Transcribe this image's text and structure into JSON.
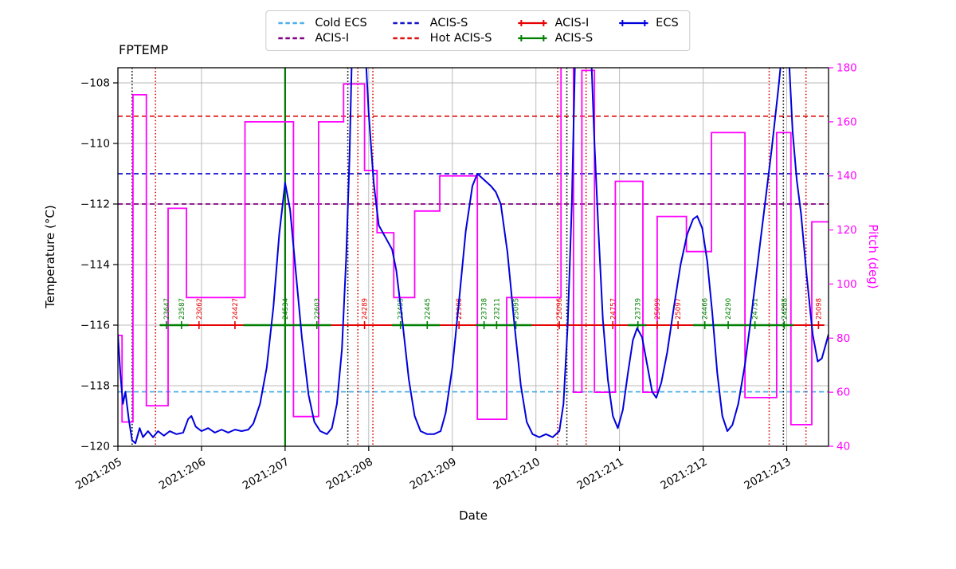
{
  "chart_data": {
    "type": "line",
    "title": "FPTEMP",
    "xlabel": "Date",
    "ylabel_left": "Temperature (°C)",
    "ylabel_right": "Pitch (deg)",
    "x_domain": [
      205.0,
      213.5
    ],
    "y_left_domain": [
      -120,
      -107.5
    ],
    "y_right_domain": [
      40,
      180
    ],
    "grid": true,
    "x_ticks": [
      {
        "v": 205,
        "label": "2021:205"
      },
      {
        "v": 206,
        "label": "2021:206"
      },
      {
        "v": 207,
        "label": "2021:207"
      },
      {
        "v": 208,
        "label": "2021:208"
      },
      {
        "v": 209,
        "label": "2021:209"
      },
      {
        "v": 210,
        "label": "2021:210"
      },
      {
        "v": 211,
        "label": "2021:211"
      },
      {
        "v": 212,
        "label": "2021:212"
      },
      {
        "v": 213,
        "label": "2021:213"
      }
    ],
    "y_left_ticks": [
      {
        "v": -108,
        "label": "−108"
      },
      {
        "v": -110,
        "label": "−110"
      },
      {
        "v": -112,
        "label": "−112"
      },
      {
        "v": -114,
        "label": "−114"
      },
      {
        "v": -116,
        "label": "−116"
      },
      {
        "v": -118,
        "label": "−118"
      },
      {
        "v": -120,
        "label": "−120"
      }
    ],
    "y_right_ticks": [
      {
        "v": 40,
        "label": "40"
      },
      {
        "v": 60,
        "label": "60"
      },
      {
        "v": 80,
        "label": "80"
      },
      {
        "v": 100,
        "label": "100"
      },
      {
        "v": 120,
        "label": "120"
      },
      {
        "v": 140,
        "label": "140"
      },
      {
        "v": 160,
        "label": "160"
      },
      {
        "v": 180,
        "label": "180"
      }
    ],
    "colors": {
      "ecs": "#0000dd",
      "pitch": "#ff00ff",
      "acis_i_obs": "#e60000",
      "acis_s_obs": "#008000",
      "cold_ecs": "#4fb0e8",
      "acis_s_limit": "#1414cc",
      "acis_i_limit": "#800080",
      "hot_acis_s": "#dd1111",
      "event_black": "#000000",
      "event_red": "#dd0000",
      "event_green": "#007700",
      "grid": "#bbbbbb",
      "axis": "#000000"
    },
    "limit_lines": [
      {
        "name": "Hot ACIS-S",
        "value": -109.1,
        "color": "#dd1111"
      },
      {
        "name": "ACIS-S",
        "value": -111.0,
        "color": "#1414cc"
      },
      {
        "name": "ACIS-I",
        "value": -112.0,
        "color": "#800080"
      },
      {
        "name": "Cold ECS",
        "value": -118.2,
        "color": "#4fb0e8"
      }
    ],
    "event_lines": [
      {
        "x": 205.17,
        "color": "#000000",
        "style": "dotted"
      },
      {
        "x": 205.45,
        "color": "#dd0000",
        "style": "dotted"
      },
      {
        "x": 207.0,
        "color": "#007700",
        "style": "solid"
      },
      {
        "x": 207.75,
        "color": "#000000",
        "style": "dotted"
      },
      {
        "x": 207.87,
        "color": "#dd0000",
        "style": "dotted"
      },
      {
        "x": 208.05,
        "color": "#dd0000",
        "style": "dotted"
      },
      {
        "x": 210.26,
        "color": "#dd0000",
        "style": "dotted"
      },
      {
        "x": 210.37,
        "color": "#000000",
        "style": "dotted"
      },
      {
        "x": 210.6,
        "color": "#dd0000",
        "style": "dotted"
      },
      {
        "x": 212.79,
        "color": "#dd0000",
        "style": "dotted"
      },
      {
        "x": 212.96,
        "color": "#000000",
        "style": "dotted"
      },
      {
        "x": 213.23,
        "color": "#dd0000",
        "style": "dotted"
      }
    ],
    "series": {
      "ecs": {
        "name": "ECS",
        "points": [
          [
            205.0,
            -116.3
          ],
          [
            205.03,
            -117.6
          ],
          [
            205.06,
            -118.6
          ],
          [
            205.09,
            -118.2
          ],
          [
            205.13,
            -119.1
          ],
          [
            205.17,
            -119.8
          ],
          [
            205.21,
            -119.9
          ],
          [
            205.26,
            -119.4
          ],
          [
            205.3,
            -119.7
          ],
          [
            205.36,
            -119.5
          ],
          [
            205.42,
            -119.7
          ],
          [
            205.48,
            -119.5
          ],
          [
            205.55,
            -119.65
          ],
          [
            205.62,
            -119.5
          ],
          [
            205.7,
            -119.6
          ],
          [
            205.78,
            -119.55
          ],
          [
            205.84,
            -119.1
          ],
          [
            205.88,
            -119.0
          ],
          [
            205.93,
            -119.35
          ],
          [
            206.0,
            -119.5
          ],
          [
            206.08,
            -119.4
          ],
          [
            206.16,
            -119.55
          ],
          [
            206.24,
            -119.45
          ],
          [
            206.32,
            -119.55
          ],
          [
            206.4,
            -119.45
          ],
          [
            206.48,
            -119.5
          ],
          [
            206.56,
            -119.45
          ],
          [
            206.62,
            -119.25
          ],
          [
            206.7,
            -118.6
          ],
          [
            206.78,
            -117.4
          ],
          [
            206.86,
            -115.4
          ],
          [
            206.93,
            -113.0
          ],
          [
            207.0,
            -111.3
          ],
          [
            207.06,
            -112.2
          ],
          [
            207.13,
            -114.3
          ],
          [
            207.2,
            -116.4
          ],
          [
            207.28,
            -118.3
          ],
          [
            207.35,
            -119.2
          ],
          [
            207.42,
            -119.5
          ],
          [
            207.5,
            -119.6
          ],
          [
            207.56,
            -119.4
          ],
          [
            207.62,
            -118.6
          ],
          [
            207.68,
            -116.8
          ],
          [
            207.73,
            -113.8
          ],
          [
            207.77,
            -110.5
          ],
          [
            207.8,
            -107.0
          ],
          [
            207.96,
            -106.9
          ],
          [
            208.0,
            -109.0
          ],
          [
            208.06,
            -111.3
          ],
          [
            208.12,
            -112.7
          ],
          [
            208.2,
            -113.1
          ],
          [
            208.28,
            -113.5
          ],
          [
            208.33,
            -114.2
          ],
          [
            208.4,
            -115.8
          ],
          [
            208.48,
            -117.8
          ],
          [
            208.55,
            -119.0
          ],
          [
            208.62,
            -119.5
          ],
          [
            208.7,
            -119.6
          ],
          [
            208.78,
            -119.6
          ],
          [
            208.86,
            -119.5
          ],
          [
            208.92,
            -118.9
          ],
          [
            209.0,
            -117.4
          ],
          [
            209.08,
            -115.2
          ],
          [
            209.16,
            -112.9
          ],
          [
            209.24,
            -111.4
          ],
          [
            209.3,
            -111.0
          ],
          [
            209.38,
            -111.2
          ],
          [
            209.46,
            -111.4
          ],
          [
            209.52,
            -111.6
          ],
          [
            209.58,
            -112.0
          ],
          [
            209.66,
            -113.6
          ],
          [
            209.74,
            -115.9
          ],
          [
            209.82,
            -118.0
          ],
          [
            209.89,
            -119.2
          ],
          [
            209.96,
            -119.6
          ],
          [
            210.04,
            -119.7
          ],
          [
            210.12,
            -119.6
          ],
          [
            210.2,
            -119.7
          ],
          [
            210.28,
            -119.5
          ],
          [
            210.33,
            -118.6
          ],
          [
            210.38,
            -116.0
          ],
          [
            210.43,
            -112.0
          ],
          [
            210.47,
            -107.0
          ],
          [
            210.66,
            -107.0
          ],
          [
            210.7,
            -110.0
          ],
          [
            210.75,
            -113.0
          ],
          [
            210.8,
            -115.8
          ],
          [
            210.86,
            -117.8
          ],
          [
            210.92,
            -119.0
          ],
          [
            210.98,
            -119.4
          ],
          [
            211.04,
            -118.8
          ],
          [
            211.1,
            -117.6
          ],
          [
            211.16,
            -116.5
          ],
          [
            211.21,
            -116.1
          ],
          [
            211.27,
            -116.4
          ],
          [
            211.33,
            -117.3
          ],
          [
            211.39,
            -118.2
          ],
          [
            211.44,
            -118.4
          ],
          [
            211.5,
            -117.9
          ],
          [
            211.57,
            -116.9
          ],
          [
            211.65,
            -115.4
          ],
          [
            211.73,
            -114.0
          ],
          [
            211.81,
            -113.0
          ],
          [
            211.88,
            -112.5
          ],
          [
            211.93,
            -112.4
          ],
          [
            211.99,
            -112.8
          ],
          [
            212.05,
            -113.9
          ],
          [
            212.11,
            -115.6
          ],
          [
            212.17,
            -117.6
          ],
          [
            212.23,
            -119.0
          ],
          [
            212.29,
            -119.5
          ],
          [
            212.35,
            -119.3
          ],
          [
            212.42,
            -118.6
          ],
          [
            212.5,
            -117.3
          ],
          [
            212.58,
            -115.6
          ],
          [
            212.66,
            -113.8
          ],
          [
            212.74,
            -112.0
          ],
          [
            212.82,
            -110.2
          ],
          [
            212.9,
            -108.2
          ],
          [
            212.95,
            -106.8
          ],
          [
            213.02,
            -106.8
          ],
          [
            213.07,
            -109.6
          ],
          [
            213.12,
            -111.2
          ],
          [
            213.17,
            -112.3
          ],
          [
            213.24,
            -114.4
          ],
          [
            213.31,
            -116.3
          ],
          [
            213.37,
            -117.2
          ],
          [
            213.42,
            -117.1
          ],
          [
            213.47,
            -116.6
          ],
          [
            213.5,
            -116.3
          ]
        ]
      },
      "pitch": {
        "name": "Pitch",
        "steps": [
          [
            205.0,
            205.05,
            81
          ],
          [
            205.05,
            205.18,
            49
          ],
          [
            205.18,
            205.34,
            170
          ],
          [
            205.34,
            205.6,
            55
          ],
          [
            205.6,
            205.82,
            128
          ],
          [
            205.82,
            206.52,
            95
          ],
          [
            206.52,
            207.1,
            160
          ],
          [
            207.1,
            207.4,
            51
          ],
          [
            207.4,
            207.7,
            160
          ],
          [
            207.7,
            207.95,
            174
          ],
          [
            207.95,
            208.1,
            142
          ],
          [
            208.1,
            208.3,
            119
          ],
          [
            208.3,
            208.55,
            95
          ],
          [
            208.55,
            208.85,
            127
          ],
          [
            208.85,
            209.3,
            140
          ],
          [
            209.3,
            209.65,
            50
          ],
          [
            209.65,
            210.3,
            95
          ],
          [
            210.3,
            210.45,
            181
          ],
          [
            210.45,
            210.55,
            60
          ],
          [
            210.55,
            210.7,
            179
          ],
          [
            210.7,
            210.95,
            60
          ],
          [
            210.95,
            211.28,
            138
          ],
          [
            211.28,
            211.45,
            60
          ],
          [
            211.45,
            211.8,
            125
          ],
          [
            211.8,
            212.1,
            112
          ],
          [
            212.1,
            212.5,
            156
          ],
          [
            212.5,
            212.88,
            58
          ],
          [
            212.88,
            213.05,
            156
          ],
          [
            213.05,
            213.3,
            48
          ],
          [
            213.3,
            213.5,
            123
          ]
        ]
      }
    },
    "observations": {
      "line_value": -116,
      "baseline": [
        205.5,
        213.45
      ],
      "green_segments": [
        [
          205.5,
          205.85
        ],
        [
          206.5,
          207.55
        ],
        [
          208.28,
          208.85
        ],
        [
          209.28,
          209.95
        ],
        [
          211.1,
          211.32
        ],
        [
          211.88,
          213.08
        ]
      ],
      "items": [
        {
          "id": "23647",
          "x": 205.58,
          "type": "ACIS-S"
        },
        {
          "id": "23587",
          "x": 205.76,
          "type": "ACIS-S"
        },
        {
          "id": "23062",
          "x": 205.97,
          "type": "ACIS-I"
        },
        {
          "id": "24427",
          "x": 206.4,
          "type": "ACIS-I"
        },
        {
          "id": "24534",
          "x": 207.0,
          "type": "ACIS-S"
        },
        {
          "id": "22603",
          "x": 207.38,
          "type": "ACIS-S"
        },
        {
          "id": "24289",
          "x": 207.95,
          "type": "ACIS-I"
        },
        {
          "id": "23495",
          "x": 208.38,
          "type": "ACIS-S"
        },
        {
          "id": "22445",
          "x": 208.7,
          "type": "ACIS-S"
        },
        {
          "id": "22988",
          "x": 209.08,
          "type": "ACIS-I"
        },
        {
          "id": "23738",
          "x": 209.38,
          "type": "ACIS-S"
        },
        {
          "id": "23211",
          "x": 209.53,
          "type": "ACIS-S"
        },
        {
          "id": "25095",
          "x": 209.76,
          "type": "ACIS-S"
        },
        {
          "id": "25096",
          "x": 210.28,
          "type": "ACIS-I"
        },
        {
          "id": "24757",
          "x": 210.92,
          "type": "ACIS-I"
        },
        {
          "id": "23739",
          "x": 211.22,
          "type": "ACIS-S"
        },
        {
          "id": "25099",
          "x": 211.45,
          "type": "ACIS-I"
        },
        {
          "id": "25097",
          "x": 211.7,
          "type": "ACIS-I"
        },
        {
          "id": "24466",
          "x": 212.02,
          "type": "ACIS-S"
        },
        {
          "id": "24290",
          "x": 212.3,
          "type": "ACIS-S"
        },
        {
          "id": "24751",
          "x": 212.62,
          "type": "ACIS-S"
        },
        {
          "id": "24288",
          "x": 212.97,
          "type": "ACIS-S"
        },
        {
          "id": "25098",
          "x": 213.38,
          "type": "ACIS-I"
        }
      ]
    },
    "legend": [
      {
        "label": "Cold ECS",
        "color": "#4fb0e8",
        "style": "dashed",
        "marker": false
      },
      {
        "label": "ACIS-S",
        "color": "#1414cc",
        "style": "dashed",
        "marker": false
      },
      {
        "label": "ACIS-I",
        "color": "#e60000",
        "style": "solid",
        "marker": true
      },
      {
        "label": "ECS",
        "color": "#0000dd",
        "style": "solid",
        "marker": true
      },
      {
        "label": "ACIS-I",
        "color": "#800080",
        "style": "dashed",
        "marker": false
      },
      {
        "label": "Hot ACIS-S",
        "color": "#dd1111",
        "style": "dashed",
        "marker": false
      },
      {
        "label": "ACIS-S",
        "color": "#008000",
        "style": "solid",
        "marker": true
      }
    ]
  }
}
